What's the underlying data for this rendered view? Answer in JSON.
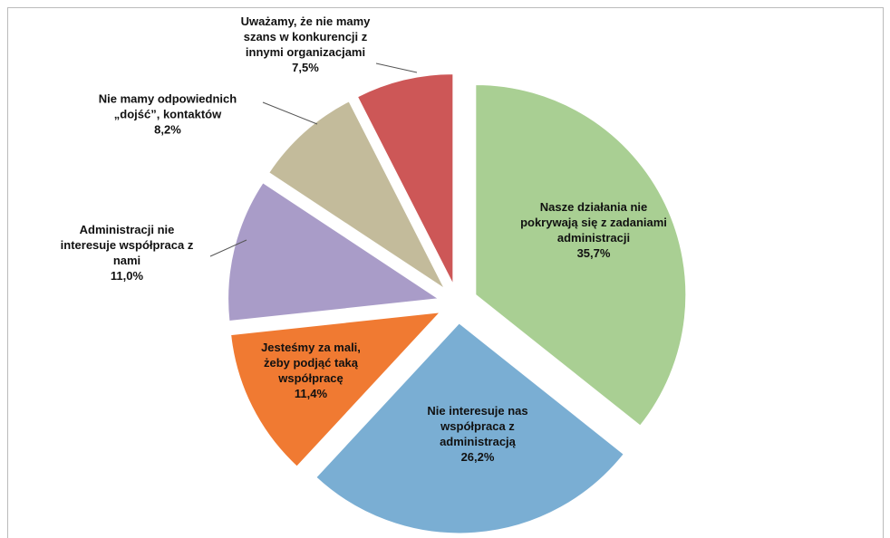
{
  "chart_data": {
    "type": "pie",
    "categories": [
      [
        "Nasze działania nie",
        "pokrywają się z zadaniami",
        "administracji"
      ],
      [
        "Nie interesuje nas",
        "współpraca z",
        "administracją"
      ],
      [
        "Jesteśmy za mali,",
        "żeby podjąć taką",
        "współpracę"
      ],
      [
        "Administracji nie",
        "interesuje współpraca z",
        "nami"
      ],
      [
        "Nie mamy odpowiednich",
        "„dojść”, kontaktów"
      ],
      [
        "Uważamy, że nie mamy",
        "szans w konkurencji z",
        "innymi organizacjami"
      ]
    ],
    "values": [
      35.7,
      26.2,
      11.4,
      11.0,
      8.2,
      7.5
    ],
    "value_labels": [
      "35,7%",
      "26,2%",
      "11,4%",
      "11,0%",
      "8,2%",
      "7,5%"
    ],
    "colors": [
      "#a9cf93",
      "#7aaed3",
      "#f07a32",
      "#a99cc8",
      "#c3bb9b",
      "#cd5757"
    ]
  }
}
